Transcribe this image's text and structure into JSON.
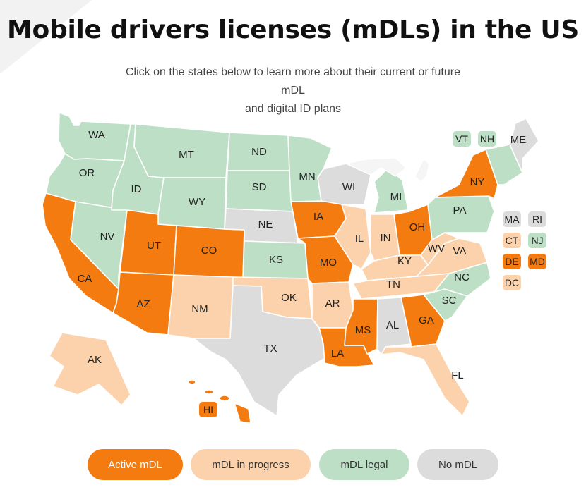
{
  "header": {
    "title": "Mobile drivers licenses (mDLs) in the US",
    "subtitle_line1": "Click on the states below to learn more about their current or future mDL",
    "subtitle_line2": "and digital ID plans"
  },
  "colors": {
    "active": "#f47b0f",
    "progress": "#fbd2ab",
    "legal": "#bcdfc5",
    "none": "#dcdcdc"
  },
  "states": [
    {
      "code": "WA",
      "status": "legal"
    },
    {
      "code": "OR",
      "status": "legal"
    },
    {
      "code": "CA",
      "status": "active"
    },
    {
      "code": "NV",
      "status": "legal"
    },
    {
      "code": "ID",
      "status": "legal"
    },
    {
      "code": "MT",
      "status": "legal"
    },
    {
      "code": "WY",
      "status": "legal"
    },
    {
      "code": "UT",
      "status": "active"
    },
    {
      "code": "AZ",
      "status": "active"
    },
    {
      "code": "CO",
      "status": "active"
    },
    {
      "code": "NM",
      "status": "progress"
    },
    {
      "code": "ND",
      "status": "legal"
    },
    {
      "code": "SD",
      "status": "legal"
    },
    {
      "code": "NE",
      "status": "none"
    },
    {
      "code": "KS",
      "status": "legal"
    },
    {
      "code": "OK",
      "status": "progress"
    },
    {
      "code": "TX",
      "status": "none"
    },
    {
      "code": "MN",
      "status": "legal"
    },
    {
      "code": "IA",
      "status": "active"
    },
    {
      "code": "MO",
      "status": "active"
    },
    {
      "code": "AR",
      "status": "progress"
    },
    {
      "code": "LA",
      "status": "active"
    },
    {
      "code": "WI",
      "status": "none"
    },
    {
      "code": "IL",
      "status": "progress"
    },
    {
      "code": "MI",
      "status": "legal"
    },
    {
      "code": "IN",
      "status": "progress"
    },
    {
      "code": "OH",
      "status": "active"
    },
    {
      "code": "KY",
      "status": "progress"
    },
    {
      "code": "TN",
      "status": "progress"
    },
    {
      "code": "MS",
      "status": "active"
    },
    {
      "code": "AL",
      "status": "none"
    },
    {
      "code": "GA",
      "status": "active"
    },
    {
      "code": "FL",
      "status": "progress"
    },
    {
      "code": "SC",
      "status": "legal"
    },
    {
      "code": "NC",
      "status": "legal"
    },
    {
      "code": "VA",
      "status": "progress"
    },
    {
      "code": "WV",
      "status": "progress"
    },
    {
      "code": "PA",
      "status": "legal"
    },
    {
      "code": "NY",
      "status": "active"
    },
    {
      "code": "ME",
      "status": "none"
    },
    {
      "code": "AK",
      "status": "progress"
    },
    {
      "code": "HI",
      "status": "active"
    }
  ],
  "small_states": [
    {
      "code": "VT",
      "status": "legal"
    },
    {
      "code": "NH",
      "status": "legal"
    },
    {
      "code": "MA",
      "status": "none"
    },
    {
      "code": "RI",
      "status": "none"
    },
    {
      "code": "CT",
      "status": "progress"
    },
    {
      "code": "NJ",
      "status": "legal"
    },
    {
      "code": "DE",
      "status": "active"
    },
    {
      "code": "MD",
      "status": "active"
    },
    {
      "code": "DC",
      "status": "progress"
    }
  ],
  "legend": [
    {
      "label": "Active mDL",
      "status": "active"
    },
    {
      "label": "mDL in progress",
      "status": "progress"
    },
    {
      "label": "mDL legal",
      "status": "legal"
    },
    {
      "label": "No mDL",
      "status": "none"
    }
  ]
}
